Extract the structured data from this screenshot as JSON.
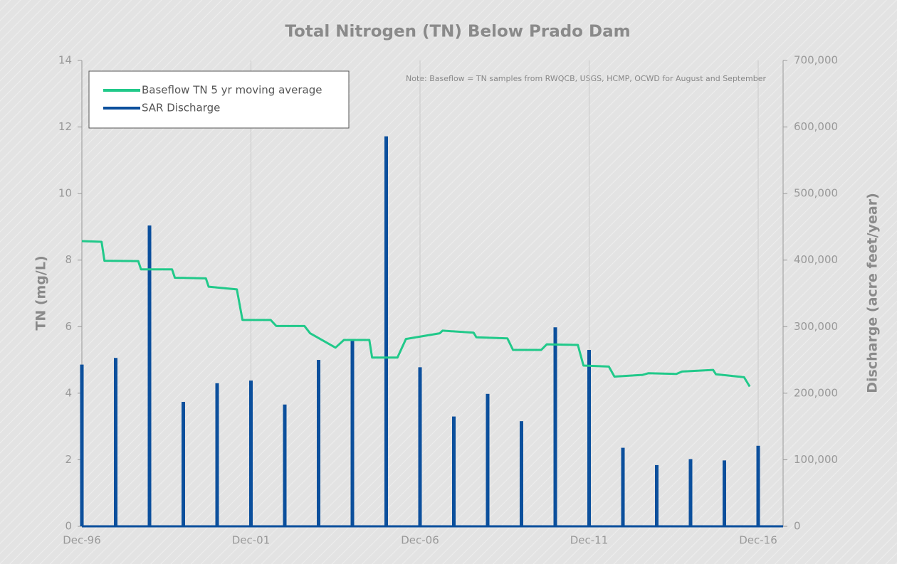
{
  "chart_data": {
    "type": "line",
    "title": "Total Nitrogen (TN) Below Prado Dam",
    "note": "Note: Baseflow = TN samples from RWQCB, USGS, HCMP, OCWD for August and September",
    "ylabel": "TN (mg/L)",
    "y2label": "Discharge (acre feet/year)",
    "xlim": [
      "1996-12",
      "2016-12"
    ],
    "xticks": [
      {
        "value": "1996-12",
        "label": "Dec-96"
      },
      {
        "value": "2001-12",
        "label": "Dec-01"
      },
      {
        "value": "2006-12",
        "label": "Dec-06"
      },
      {
        "value": "2011-12",
        "label": "Dec-11"
      },
      {
        "value": "2016-12",
        "label": "Dec-16"
      }
    ],
    "ylim": [
      0,
      14
    ],
    "yticks": [
      0,
      2,
      4,
      6,
      8,
      10,
      12,
      14
    ],
    "y2lim": [
      0,
      700000
    ],
    "y2ticks": [
      0,
      {
        "value": 100000,
        "label": "100,000"
      },
      {
        "value": 200000,
        "label": "200,000"
      },
      {
        "value": 300000,
        "label": "300,000"
      },
      {
        "value": 400000,
        "label": "400,000"
      },
      {
        "value": 500000,
        "label": "500,000"
      },
      {
        "value": 600000,
        "label": "600,000"
      },
      {
        "value": 700000,
        "label": "700,000"
      }
    ],
    "grid": "x",
    "legend": "upper left",
    "series": [
      {
        "name": "Baseflow TN 5 yr moving average",
        "color": "#21c98a",
        "type": "line",
        "x": [
          "1996-12",
          "1997-07",
          "1997-08",
          "1998-08",
          "1998-09",
          "1999-08",
          "1999-09",
          "2000-08",
          "2000-09",
          "2001-07",
          "2001-09",
          "2002-07",
          "2002-09",
          "2003-07",
          "2003-09",
          "2004-06",
          "2004-09",
          "2005-06",
          "2005-07",
          "2006-04",
          "2006-07",
          "2007-07",
          "2007-08",
          "2008-07",
          "2008-08",
          "2009-07",
          "2009-09",
          "2010-07",
          "2010-09",
          "2011-08",
          "2011-10",
          "2012-07",
          "2012-09",
          "2013-07",
          "2013-09",
          "2014-07",
          "2014-09",
          "2015-08",
          "2015-09",
          "2016-07",
          "2016-09"
        ],
        "values": [
          8.57,
          8.55,
          7.98,
          7.97,
          7.72,
          7.72,
          7.47,
          7.45,
          7.2,
          7.12,
          6.2,
          6.2,
          6.02,
          6.02,
          5.8,
          5.37,
          5.6,
          5.6,
          5.07,
          5.07,
          5.63,
          5.8,
          5.88,
          5.82,
          5.68,
          5.65,
          5.3,
          5.3,
          5.47,
          5.45,
          4.83,
          4.8,
          4.5,
          4.55,
          4.6,
          4.58,
          4.65,
          4.7,
          4.57,
          4.48,
          4.2
        ]
      },
      {
        "name": "SAR Discharge",
        "color": "#0b4f9c",
        "type": "bar",
        "axis": "y2",
        "x": [
          "1996-12",
          "1997-12",
          "1998-12",
          "1999-12",
          "2000-12",
          "2001-12",
          "2002-12",
          "2003-12",
          "2004-12",
          "2005-12",
          "2006-12",
          "2007-12",
          "2008-12",
          "2009-12",
          "2010-12",
          "2011-12",
          "2012-12",
          "2013-12",
          "2014-12",
          "2015-12",
          "2016-12"
        ],
        "values": [
          243000,
          253000,
          452000,
          187000,
          215000,
          219000,
          183000,
          250000,
          280000,
          586000,
          239000,
          165000,
          199000,
          158000,
          299000,
          265000,
          118000,
          92000,
          101000,
          99000,
          121000
        ]
      }
    ]
  }
}
